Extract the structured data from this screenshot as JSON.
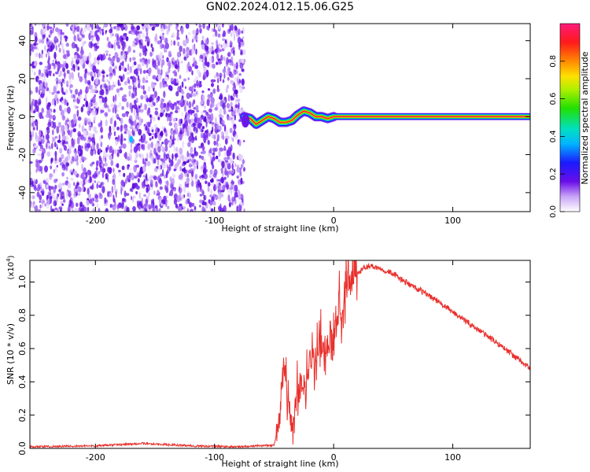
{
  "title": "GN02.2024.012.15.06.G25",
  "colors": {
    "axis": "#000000",
    "snr_line": "#e8302c",
    "speckle": "#7a2cf0",
    "signal_core": "#ff1a40"
  },
  "chart_data": [
    {
      "type": "heatmap",
      "xlabel": "Height of straight line (km)",
      "ylabel": "Frequency (Hz)",
      "xlim": [
        -255,
        165
      ],
      "ylim": [
        -50,
        49
      ],
      "xticks": [
        -200,
        -100,
        0,
        100
      ],
      "yticks": [
        -40,
        -20,
        0,
        20,
        40
      ],
      "colorbar": {
        "label": "Normalized spectral amplitude",
        "range": [
          0,
          1
        ],
        "ticks": [
          0.0,
          0.2,
          0.4,
          0.6,
          0.8
        ]
      },
      "regions": [
        {
          "description_key": "noise",
          "x_range": [
            -255,
            -75
          ],
          "y_range": [
            -50,
            49
          ],
          "amplitude": 0.15
        },
        {
          "description_key": "transition",
          "x_range": [
            -75,
            0
          ],
          "track": [
            [
              -75,
              0
            ],
            [
              -70,
              -1
            ],
            [
              -65,
              -4
            ],
            [
              -60,
              -2
            ],
            [
              -55,
              0
            ],
            [
              -50,
              -1
            ],
            [
              -45,
              -3
            ],
            [
              -40,
              -3
            ],
            [
              -35,
              -2
            ],
            [
              -30,
              1
            ],
            [
              -25,
              3
            ],
            [
              -20,
              2
            ],
            [
              -15,
              0
            ],
            [
              -10,
              0
            ],
            [
              -5,
              -1
            ],
            [
              0,
              0
            ]
          ],
          "amplitude": 0.7
        },
        {
          "description_key": "carrier",
          "x_range": [
            0,
            165
          ],
          "frequency": 0,
          "amplitude": 0.95
        }
      ]
    },
    {
      "type": "line",
      "xlabel": "Height of straight line (km)",
      "ylabel": "SNR (10 * v/v)",
      "y_multiplier": "(x10",
      "y_multiplier_exp": "4",
      "y_multiplier_close": ")",
      "xlim": [
        -255,
        165
      ],
      "ylim": [
        0,
        1.13
      ],
      "xticks": [
        -200,
        -100,
        0,
        100
      ],
      "yticks": [
        0.0,
        0.2,
        0.4,
        0.6,
        0.8,
        1.0
      ],
      "series": [
        {
          "x": [
            -255,
            -200,
            -160,
            -120,
            -80,
            -50,
            -46,
            -42,
            -38,
            -35,
            -30,
            -25,
            -20,
            -15,
            -10,
            -5,
            0,
            5,
            10,
            15,
            20,
            25,
            30,
            40,
            50,
            60,
            80,
            100,
            120,
            140,
            165
          ],
          "y": [
            0.01,
            0.015,
            0.03,
            0.015,
            0.01,
            0.02,
            0.15,
            0.55,
            0.25,
            0.1,
            0.4,
            0.35,
            0.55,
            0.5,
            0.65,
            0.6,
            0.75,
            0.8,
            0.9,
            1.0,
            1.05,
            1.08,
            1.1,
            1.08,
            1.05,
            1.0,
            0.92,
            0.82,
            0.72,
            0.62,
            0.48
          ]
        }
      ]
    }
  ]
}
